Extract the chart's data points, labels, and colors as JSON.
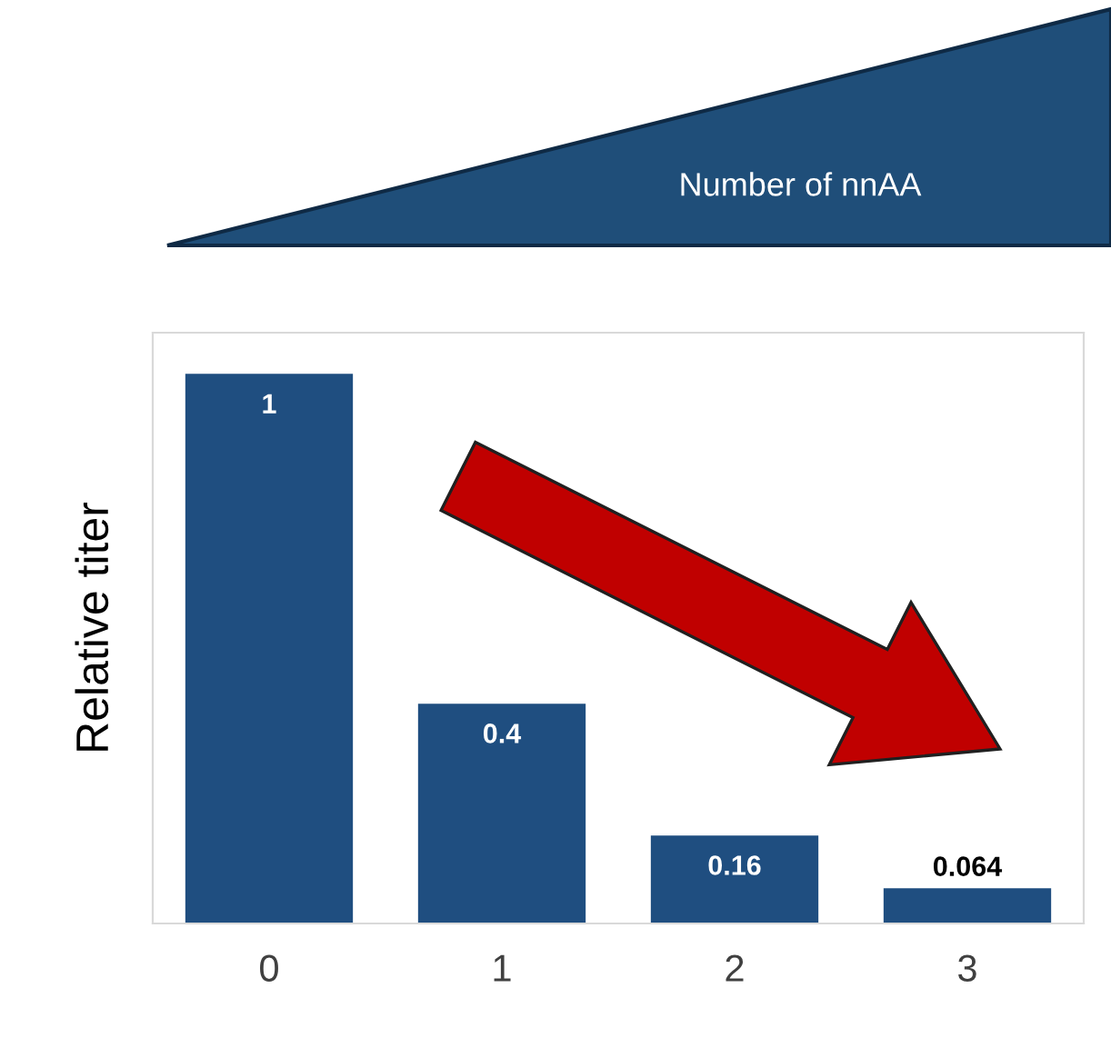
{
  "chart_data": {
    "type": "bar",
    "categories": [
      "0",
      "1",
      "2",
      "3"
    ],
    "values": [
      1,
      0.4,
      0.16,
      0.064
    ],
    "color": "#1f4e80",
    "ylabel": "Relative titer",
    "annotations": [
      "Number of nnAA"
    ],
    "data_labels": true,
    "tick_labels": "x",
    "grid": false,
    "legend": false
  }
}
